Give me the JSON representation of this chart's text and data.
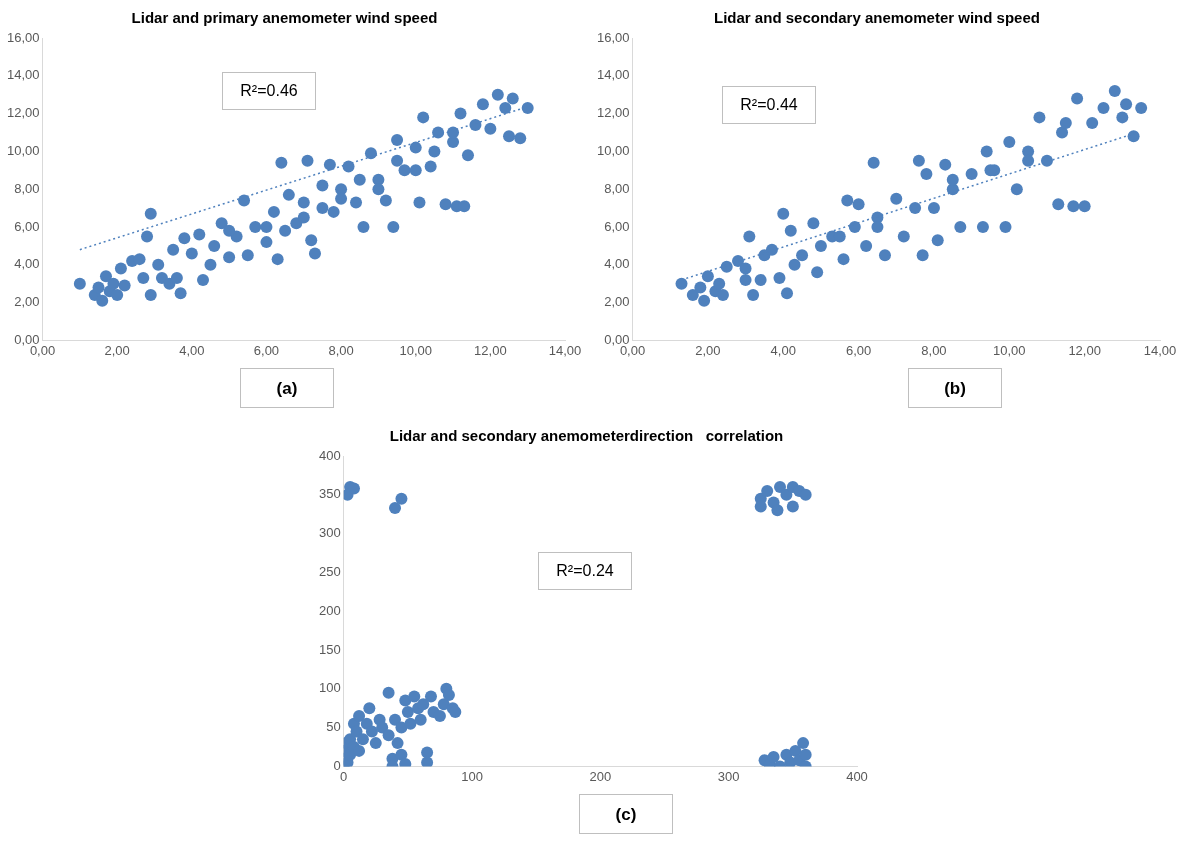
{
  "chart_data": [
    {
      "type": "scatter",
      "title": "Lidar and primary anemometer wind speed",
      "grid": false,
      "legend": false,
      "marker": "circle",
      "xlim": [
        0,
        14
      ],
      "ylim": [
        0,
        16
      ],
      "xticks": [
        {
          "value": 0,
          "label": "0,00"
        },
        {
          "value": 2,
          "label": "2,00"
        },
        {
          "value": 4,
          "label": "4,00"
        },
        {
          "value": 6,
          "label": "6,00"
        },
        {
          "value": 8,
          "label": "8,00"
        },
        {
          "value": 10,
          "label": "10,00"
        },
        {
          "value": 12,
          "label": "12,00"
        },
        {
          "value": 14,
          "label": "14,00"
        }
      ],
      "yticks": [
        {
          "value": 0,
          "label": "0,00"
        },
        {
          "value": 2,
          "label": "2,00"
        },
        {
          "value": 4,
          "label": "4,00"
        },
        {
          "value": 6,
          "label": "6,00"
        },
        {
          "value": 8,
          "label": "8,00"
        },
        {
          "value": 10,
          "label": "10,00"
        },
        {
          "value": 12,
          "label": "12,00"
        },
        {
          "value": 14,
          "label": "14,00"
        },
        {
          "value": 16,
          "label": "16,00"
        }
      ],
      "annotations": [
        "R²=0.46",
        "(a)"
      ],
      "series": [
        {
          "type": "scatter",
          "color": "#4f81bd",
          "x": [
            1.0,
            1.4,
            1.5,
            1.6,
            1.7,
            1.8,
            1.9,
            2.0,
            2.1,
            2.2,
            2.4,
            2.6,
            2.7,
            2.8,
            2.9,
            2.9,
            3.1,
            3.2,
            3.4,
            3.5,
            3.6,
            3.7,
            3.8,
            4.0,
            4.2,
            4.3,
            4.5,
            4.6,
            4.8,
            5.0,
            5.2,
            5.4,
            5.5,
            5.7,
            6.0,
            6.2,
            6.3,
            6.4,
            6.6,
            6.8,
            7.0,
            7.1,
            7.2,
            7.3,
            7.5,
            7.7,
            7.8,
            8.0,
            8.2,
            8.4,
            8.6,
            8.8,
            9.0,
            9.2,
            9.4,
            9.5,
            9.7,
            10.0,
            10.1,
            10.2,
            10.4,
            10.6,
            10.8,
            11.0,
            11.1,
            11.2,
            11.3,
            11.4,
            11.6,
            11.8,
            12.0,
            12.2,
            12.4,
            12.5,
            12.6,
            12.8,
            13.0,
            5.0,
            6.0,
            7.0,
            8.0,
            9.0,
            10.0,
            11.0,
            8.5,
            9.5,
            10.5,
            7.5,
            6.5
          ],
          "values": [
            3.0,
            2.4,
            2.8,
            2.1,
            3.4,
            2.6,
            3.0,
            2.4,
            3.8,
            2.9,
            4.2,
            4.3,
            3.3,
            5.5,
            6.7,
            2.4,
            4.0,
            3.3,
            3.0,
            4.8,
            3.3,
            2.5,
            5.4,
            4.6,
            5.6,
            3.2,
            4.0,
            5.0,
            6.2,
            4.4,
            5.5,
            7.4,
            4.5,
            6.0,
            5.2,
            6.8,
            4.3,
            9.4,
            7.7,
            6.2,
            7.3,
            9.5,
            5.3,
            4.6,
            8.2,
            9.3,
            6.8,
            8.0,
            9.2,
            7.3,
            6.0,
            9.9,
            8.5,
            7.4,
            6.0,
            10.6,
            9.0,
            10.2,
            7.3,
            11.8,
            9.2,
            11.0,
            7.2,
            10.5,
            7.1,
            12.0,
            7.1,
            9.8,
            11.4,
            12.5,
            11.2,
            13.0,
            12.3,
            10.8,
            12.8,
            10.7,
            12.3,
            5.8,
            6.0,
            6.5,
            7.5,
            8.0,
            9.0,
            11.0,
            8.5,
            9.5,
            10.0,
            7.0,
            5.8
          ]
        },
        {
          "type": "line",
          "color": "#4f81bd",
          "line_style": "dotted",
          "marker": "none",
          "x": [
            1.0,
            12.9
          ],
          "values": [
            4.8,
            12.3
          ]
        }
      ]
    },
    {
      "type": "scatter",
      "title": "Lidar and secondary anemometer wind speed",
      "grid": false,
      "legend": false,
      "marker": "circle",
      "xlim": [
        0,
        14
      ],
      "ylim": [
        0,
        16
      ],
      "xticks": [
        {
          "value": 0,
          "label": "0,00"
        },
        {
          "value": 2,
          "label": "2,00"
        },
        {
          "value": 4,
          "label": "4,00"
        },
        {
          "value": 6,
          "label": "6,00"
        },
        {
          "value": 8,
          "label": "8,00"
        },
        {
          "value": 10,
          "label": "10,00"
        },
        {
          "value": 12,
          "label": "12,00"
        },
        {
          "value": 14,
          "label": "14,00"
        }
      ],
      "yticks": [
        {
          "value": 0,
          "label": "0,00"
        },
        {
          "value": 2,
          "label": "2,00"
        },
        {
          "value": 4,
          "label": "4,00"
        },
        {
          "value": 6,
          "label": "6,00"
        },
        {
          "value": 8,
          "label": "8,00"
        },
        {
          "value": 10,
          "label": "10,00"
        },
        {
          "value": 12,
          "label": "12,00"
        },
        {
          "value": 14,
          "label": "14,00"
        },
        {
          "value": 16,
          "label": "16,00"
        }
      ],
      "annotations": [
        "R²=0.44",
        "(b)"
      ],
      "series": [
        {
          "type": "scatter",
          "color": "#4f81bd",
          "x": [
            1.3,
            1.6,
            1.8,
            1.9,
            2.0,
            2.2,
            2.3,
            2.4,
            2.5,
            2.8,
            3.0,
            3.0,
            3.1,
            3.2,
            3.4,
            3.5,
            3.7,
            3.9,
            4.0,
            4.1,
            4.2,
            4.3,
            4.5,
            4.8,
            4.9,
            5.0,
            5.3,
            5.6,
            5.7,
            5.9,
            6.0,
            6.2,
            6.4,
            6.5,
            6.7,
            7.0,
            7.2,
            7.6,
            7.7,
            7.8,
            8.0,
            8.1,
            8.3,
            8.5,
            8.7,
            9.0,
            9.3,
            9.4,
            9.6,
            9.9,
            10.0,
            10.2,
            10.5,
            10.8,
            11.0,
            11.3,
            11.4,
            11.7,
            11.8,
            12.0,
            12.2,
            12.5,
            12.8,
            13.0,
            13.1,
            13.3,
            13.5,
            5.5,
            6.5,
            7.5,
            8.5,
            9.5,
            10.5,
            11.5
          ],
          "values": [
            3.0,
            2.4,
            2.8,
            2.1,
            3.4,
            2.6,
            3.0,
            2.4,
            3.9,
            4.2,
            3.8,
            3.2,
            5.5,
            2.4,
            3.2,
            4.5,
            4.8,
            3.3,
            6.7,
            2.5,
            5.8,
            4.0,
            4.5,
            6.2,
            3.6,
            5.0,
            5.5,
            4.3,
            7.4,
            6.0,
            7.2,
            5.0,
            9.4,
            6.5,
            4.5,
            7.5,
            5.5,
            9.5,
            4.5,
            8.8,
            7.0,
            5.3,
            9.3,
            8.0,
            6.0,
            8.8,
            6.0,
            10.0,
            9.0,
            6.0,
            10.5,
            8.0,
            10.0,
            11.8,
            9.5,
            7.2,
            11.0,
            7.1,
            12.8,
            7.1,
            11.5,
            12.3,
            13.2,
            11.8,
            12.5,
            10.8,
            12.3,
            5.5,
            6.0,
            7.0,
            8.5,
            9.0,
            9.5,
            11.5
          ]
        },
        {
          "type": "line",
          "color": "#4f81bd",
          "line_style": "dotted",
          "marker": "none",
          "x": [
            1.3,
            13.4
          ],
          "values": [
            3.2,
            11.0
          ]
        }
      ]
    },
    {
      "type": "scatter",
      "title": "Lidar and secondary anemometerdirection   correlation",
      "grid": false,
      "legend": false,
      "marker": "circle",
      "xlim": [
        0,
        400
      ],
      "ylim": [
        0,
        400
      ],
      "xticks": [
        0,
        100,
        200,
        300,
        400
      ],
      "yticks": [
        0,
        50,
        100,
        150,
        200,
        250,
        300,
        350,
        400
      ],
      "annotations": [
        "R²=0.24",
        "(c)"
      ],
      "series": [
        {
          "type": "scatter",
          "color": "#4f81bd",
          "x": [
            0,
            0,
            0,
            2,
            3,
            5,
            5,
            8,
            8,
            10,
            12,
            12,
            15,
            18,
            20,
            22,
            25,
            28,
            30,
            35,
            35,
            38,
            38,
            40,
            42,
            45,
            45,
            48,
            48,
            50,
            52,
            55,
            58,
            60,
            62,
            65,
            65,
            68,
            70,
            75,
            78,
            80,
            82,
            85,
            87,
            5,
            3,
            8,
            40,
            45,
            325,
            325,
            330,
            335,
            340,
            345,
            350,
            350,
            355,
            360,
            338,
            328,
            332,
            335,
            340,
            345,
            348,
            352,
            355,
            358,
            360,
            360
          ],
          "values": [
            0,
            10,
            20,
            30,
            5,
            15,
            35,
            25,
            55,
            45,
            20,
            65,
            35,
            55,
            75,
            45,
            30,
            60,
            50,
            40,
            95,
            10,
            0,
            60,
            30,
            50,
            15,
            3,
            85,
            70,
            55,
            90,
            75,
            60,
            80,
            5,
            18,
            90,
            70,
            65,
            80,
            100,
            92,
            75,
            70,
            360,
            350,
            358,
            333,
            345,
            345,
            335,
            355,
            340,
            360,
            350,
            360,
            335,
            355,
            350,
            330,
            8,
            2,
            12,
            0,
            15,
            5,
            20,
            8,
            30,
            15,
            0
          ]
        }
      ]
    }
  ]
}
